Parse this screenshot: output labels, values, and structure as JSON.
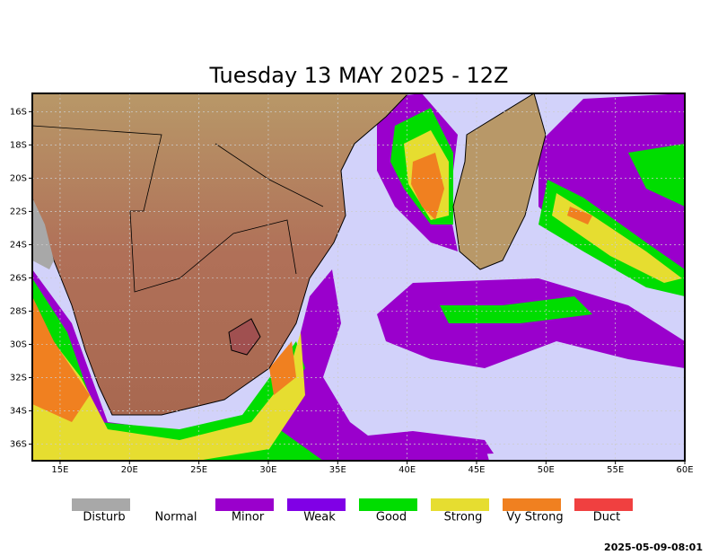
{
  "header": {
    "title": "Tuesday 13 MAY 2025 - 12Z"
  },
  "map": {
    "xlim": [
      13,
      60
    ],
    "ylim": [
      -37,
      -14.9
    ],
    "lon_ticks": [
      {
        "value": 15,
        "label": "15E"
      },
      {
        "value": 20,
        "label": "20E"
      },
      {
        "value": 25,
        "label": "25E"
      },
      {
        "value": 30,
        "label": "30E"
      },
      {
        "value": 35,
        "label": "35E"
      },
      {
        "value": 40,
        "label": "40E"
      },
      {
        "value": 45,
        "label": "45E"
      },
      {
        "value": 50,
        "label": "50E"
      },
      {
        "value": 55,
        "label": "55E"
      },
      {
        "value": 60,
        "label": "60E"
      }
    ],
    "lat_ticks": [
      {
        "value": -16,
        "label": "16S"
      },
      {
        "value": -18,
        "label": "18S"
      },
      {
        "value": -20,
        "label": "20S"
      },
      {
        "value": -22,
        "label": "22S"
      },
      {
        "value": -24,
        "label": "24S"
      },
      {
        "value": -26,
        "label": "26S"
      },
      {
        "value": -28,
        "label": "28S"
      },
      {
        "value": -30,
        "label": "30S"
      },
      {
        "value": -32,
        "label": "32S"
      },
      {
        "value": -34,
        "label": "34S"
      },
      {
        "value": -36,
        "label": "36S"
      }
    ]
  },
  "legend": [
    {
      "label": "Disturb",
      "color": "#a8a8a8"
    },
    {
      "label": "Normal",
      "color": "#ffffff"
    },
    {
      "label": "Minor",
      "color": "#9a00cc"
    },
    {
      "label": "Weak",
      "color": "#8000e6"
    },
    {
      "label": "Good",
      "color": "#00dd00"
    },
    {
      "label": "Strong",
      "color": "#e6dd30"
    },
    {
      "label": "Vy Strong",
      "color": "#f08020"
    },
    {
      "label": "Duct",
      "color": "#f04040"
    }
  ],
  "footer": {
    "timestamp": "2025-05-09-08:01"
  }
}
